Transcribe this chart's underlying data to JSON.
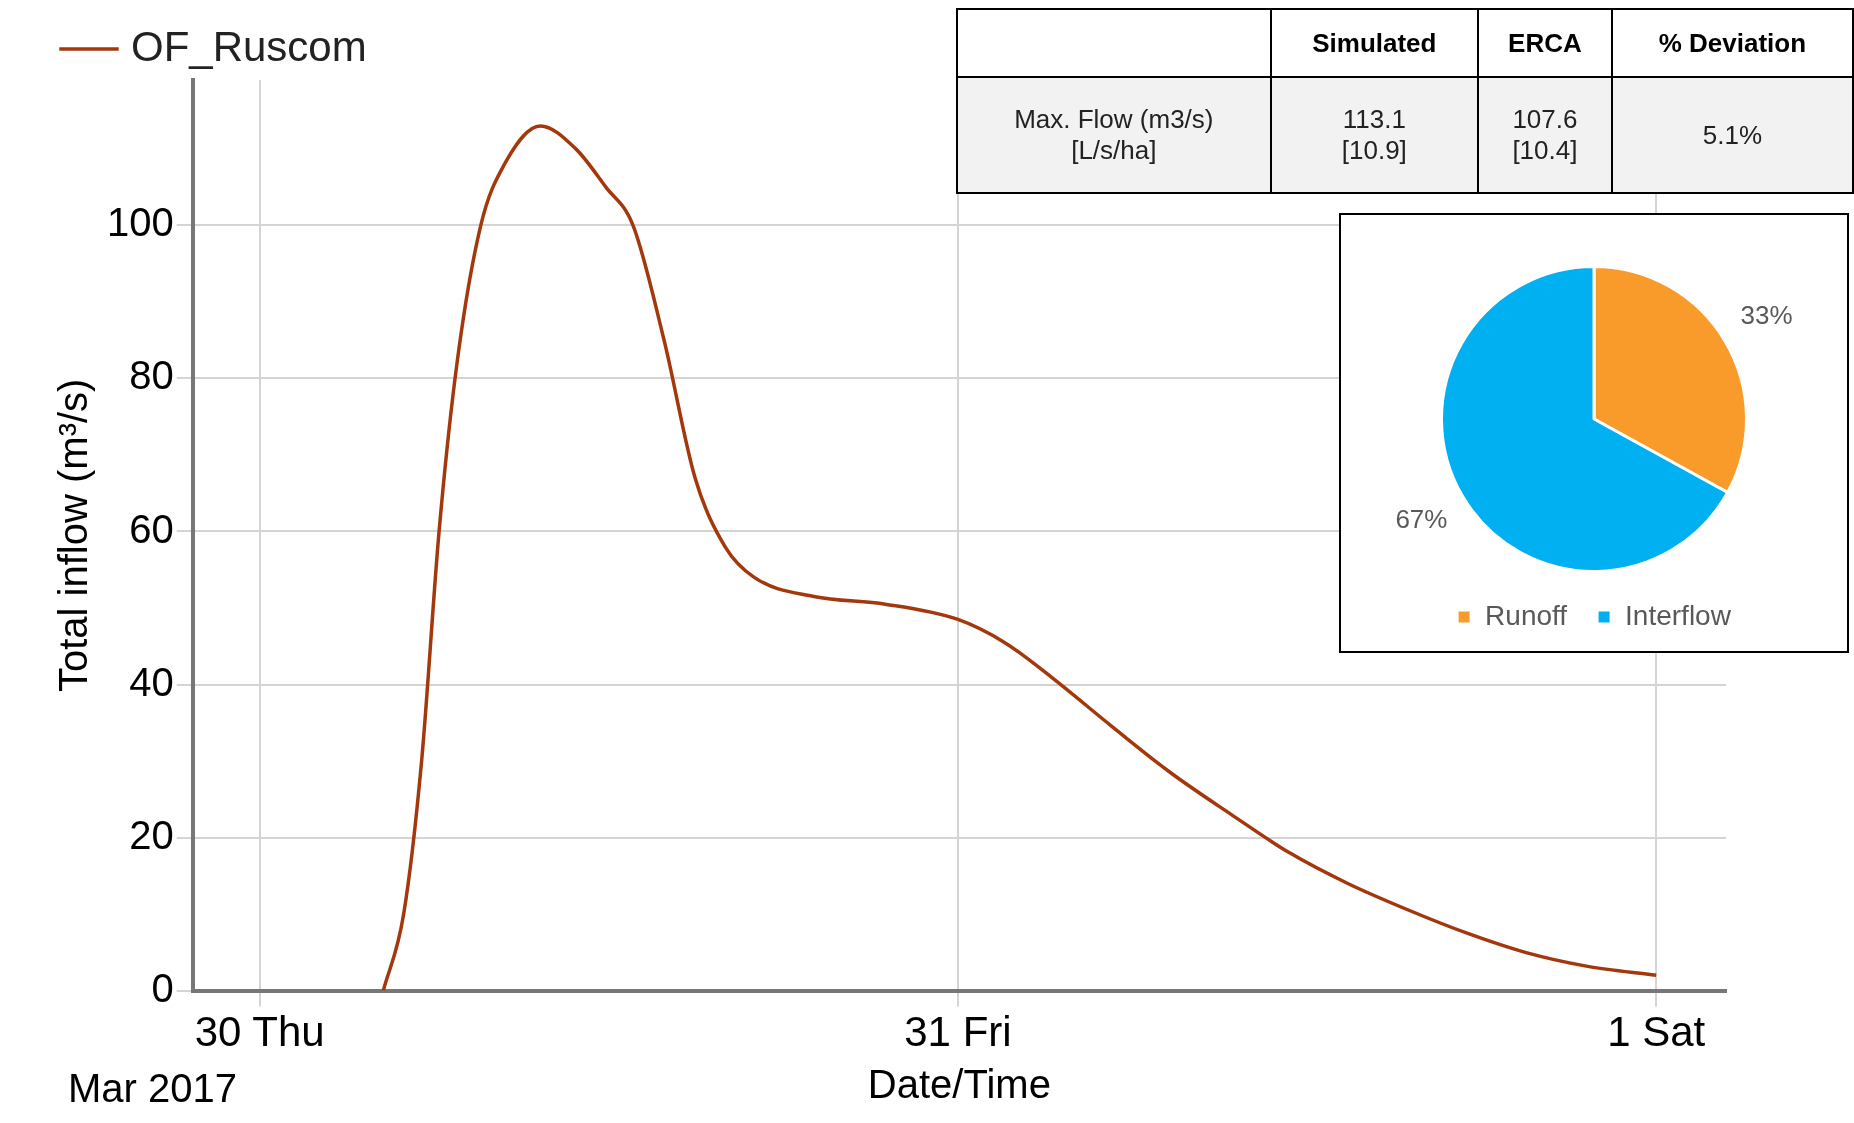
{
  "chart_data": [
    {
      "type": "line",
      "xlabel": "Date/Time",
      "ylabel": "Total inflow (m³/s)",
      "annotations": [
        "Mar 2017"
      ],
      "series": [
        {
          "name": "OF_Ruscom",
          "color": "#a3380c",
          "x": [
            "2017-03-30T04:15",
            "2017-03-30T04:57",
            "2017-03-30T05:34",
            "2017-03-30T06:10",
            "2017-03-30T06:47",
            "2017-03-30T07:36",
            "2017-03-30T08:25",
            "2017-03-30T09:39",
            "2017-03-30T10:52",
            "2017-03-30T11:54",
            "2017-03-30T12:50",
            "2017-03-30T13:54",
            "2017-03-30T14:58",
            "2017-03-30T16:00",
            "2017-03-30T17:00",
            "2017-03-30T19:03",
            "2017-03-30T21:30",
            "2017-03-31T00:00",
            "2017-03-31T01:36",
            "2017-03-31T03:12",
            "2017-03-31T05:18",
            "2017-03-31T07:18",
            "2017-03-31T09:24",
            "2017-03-31T11:24",
            "2017-03-31T13:24",
            "2017-03-31T15:30",
            "2017-03-31T17:30",
            "2017-03-31T19:30",
            "2017-03-31T21:36",
            "2017-04-01T00:00"
          ],
          "values": [
            0,
            10,
            30,
            60,
            82,
            100,
            108,
            113,
            110,
            105,
            100,
            85,
            67,
            58,
            54,
            51.5,
            50.5,
            48.5,
            45.5,
            41,
            34.5,
            28.5,
            23,
            18,
            14,
            10.5,
            7.5,
            5,
            3.2,
            2
          ]
        }
      ],
      "xlim": [
        "2017-03-29T21:42",
        "2017-04-01T02:24"
      ],
      "xticks": [
        {
          "value": "2017-03-30",
          "label": "30 Thu"
        },
        {
          "value": "2017-03-31",
          "label": "31 Fri"
        },
        {
          "value": "2017-04-01",
          "label": "1 Sat"
        }
      ],
      "ylim": [
        0,
        119
      ],
      "yticks": [
        0,
        20,
        40,
        60,
        80,
        100
      ],
      "grid": true,
      "legend": "top left",
      "marker": "none",
      "line_style": "solid"
    },
    {
      "type": "pie",
      "categories": [
        "Runoff",
        "Interflow"
      ],
      "values": [
        33,
        67
      ],
      "colors": [
        "#f99b2a",
        "#00b0f0"
      ],
      "value_labels": [
        "33%",
        "67%"
      ],
      "legend": "bottom"
    },
    {
      "type": "other",
      "categories": [
        null,
        "Simulated",
        "ERCA",
        "% Deviation"
      ],
      "annotations": [
        "Max. Flow (m3/s)\n[L/s/ha]",
        "113.1\n[10.9]",
        "107.6\n[10.4]",
        "5.1%"
      ]
    }
  ]
}
